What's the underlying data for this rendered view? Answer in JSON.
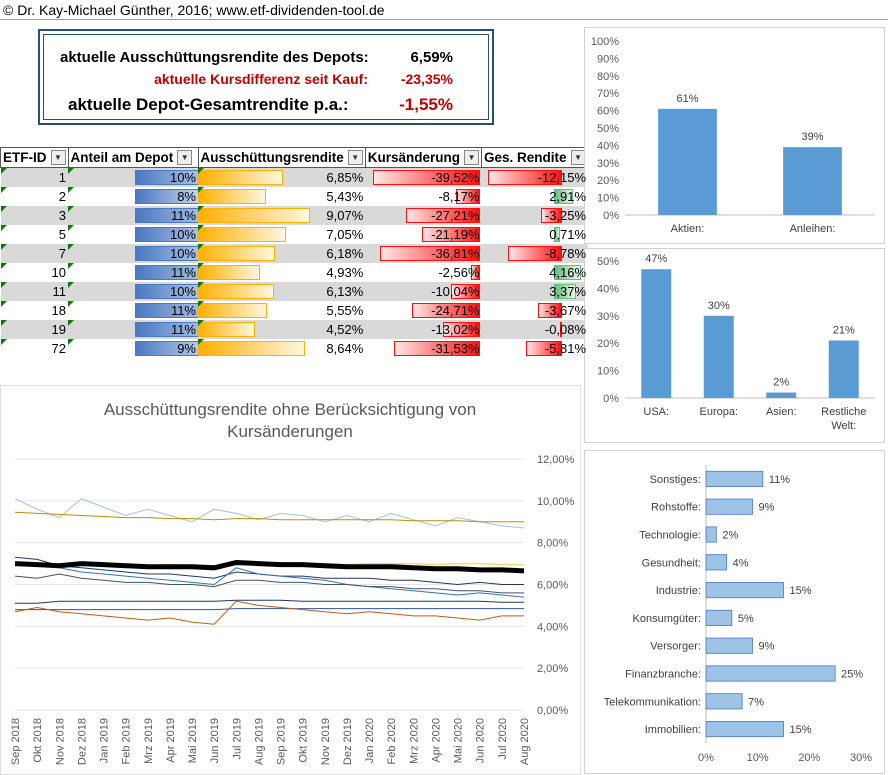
{
  "header": {
    "copyright": "© Dr. Kay-Michael Günther, 2016; www.etf-dividenden-tool.de"
  },
  "summary": {
    "yield_label": "aktuelle Ausschüttungsrendite des Depots:",
    "yield_value": "6,59%",
    "diff_label": "aktuelle Kursdifferenz seit Kauf:",
    "diff_value": "-23,35%",
    "total_label": "aktuelle Depot-Gesamtrendite p.a.:",
    "total_value": "-1,55%"
  },
  "table": {
    "headers": [
      "ETF-ID",
      "Anteil am Depot",
      "Ausschüttungsrendite",
      "Kursänderung",
      "Ges. Rendite"
    ],
    "rows": [
      {
        "id": "1",
        "share": "10%",
        "share_v": 0.1,
        "yield": "6,85%",
        "yield_v": 6.85,
        "chg": "-39,52%",
        "chg_v": -39.52,
        "tot": "-12,15%",
        "tot_v": -12.15
      },
      {
        "id": "2",
        "share": "8%",
        "share_v": 0.08,
        "yield": "5,43%",
        "yield_v": 5.43,
        "chg": "-8,17%",
        "chg_v": -8.17,
        "tot": "2,91%",
        "tot_v": 2.91
      },
      {
        "id": "3",
        "share": "11%",
        "share_v": 0.11,
        "yield": "9,07%",
        "yield_v": 9.07,
        "chg": "-27,21%",
        "chg_v": -27.21,
        "tot": "-3,25%",
        "tot_v": -3.25
      },
      {
        "id": "5",
        "share": "10%",
        "share_v": 0.1,
        "yield": "7,05%",
        "yield_v": 7.05,
        "chg": "-21,19%",
        "chg_v": -21.19,
        "tot": "0,71%",
        "tot_v": 0.71
      },
      {
        "id": "7",
        "share": "10%",
        "share_v": 0.1,
        "yield": "6,18%",
        "yield_v": 6.18,
        "chg": "-36,81%",
        "chg_v": -36.81,
        "tot": "-8,78%",
        "tot_v": -8.78
      },
      {
        "id": "10",
        "share": "11%",
        "share_v": 0.11,
        "yield": "4,93%",
        "yield_v": 4.93,
        "chg": "-2,56%",
        "chg_v": -2.56,
        "tot": "4,16%",
        "tot_v": 4.16
      },
      {
        "id": "11",
        "share": "10%",
        "share_v": 0.1,
        "yield": "6,13%",
        "yield_v": 6.13,
        "chg": "-10,04%",
        "chg_v": -10.04,
        "tot": "3,37%",
        "tot_v": 3.37
      },
      {
        "id": "18",
        "share": "11%",
        "share_v": 0.11,
        "yield": "5,55%",
        "yield_v": 5.55,
        "chg": "-24,71%",
        "chg_v": -24.71,
        "tot": "-3,67%",
        "tot_v": -3.67
      },
      {
        "id": "19",
        "share": "11%",
        "share_v": 0.11,
        "yield": "4,52%",
        "yield_v": 4.52,
        "chg": "-13,02%",
        "chg_v": -13.02,
        "tot": "-0,08%",
        "tot_v": -0.08
      },
      {
        "id": "72",
        "share": "9%",
        "share_v": 0.09,
        "yield": "8,64%",
        "yield_v": 8.64,
        "chg": "-31,53%",
        "chg_v": -31.53,
        "tot": "-5,81%",
        "tot_v": -5.81
      }
    ]
  },
  "chart_data": [
    {
      "type": "bar",
      "categories": [
        "Aktien:",
        "Anleihen:"
      ],
      "values": [
        61,
        39
      ],
      "labels": [
        "61%",
        "39%"
      ],
      "ylim": [
        0,
        100
      ],
      "yticks": [
        "0%",
        "10%",
        "20%",
        "30%",
        "40%",
        "50%",
        "60%",
        "70%",
        "80%",
        "90%",
        "100%"
      ],
      "color": "#5b9bd5"
    },
    {
      "type": "bar",
      "categories": [
        "USA:",
        "Europa:",
        "Asien:",
        "Restliche Welt:"
      ],
      "values": [
        47,
        30,
        2,
        21
      ],
      "labels": [
        "47%",
        "30%",
        "2%",
        "21%"
      ],
      "ylim": [
        0,
        50
      ],
      "yticks": [
        "0%",
        "10%",
        "20%",
        "30%",
        "40%",
        "50%"
      ],
      "color": "#5b9bd5"
    },
    {
      "type": "line",
      "title": "Ausschüttungsrendite ohne Berücksichtigung von Kursänderungen",
      "x": [
        "Sep 2018",
        "Okt 2018",
        "Nov 2018",
        "Dez 2018",
        "Jan 2019",
        "Feb 2019",
        "Mrz 2019",
        "Apr 2019",
        "Mai 2019",
        "Jun 2019",
        "Jul 2019",
        "Aug 2019",
        "Sep 2019",
        "Okt 2019",
        "Nov 2019",
        "Dez 2019",
        "Jan 2020",
        "Feb 2020",
        "Mrz 2020",
        "Apr 2020",
        "Mai 2020",
        "Jun 2020",
        "Jul 2020",
        "Aug 2020"
      ],
      "ylim": [
        0,
        12
      ],
      "yticks": [
        "0,00%",
        "2,00%",
        "4,00%",
        "6,00%",
        "8,00%",
        "10,00%",
        "12,00%"
      ],
      "series": [
        {
          "color": "#9dc3e6",
          "width": 1,
          "values": [
            10.1,
            9.6,
            9.2,
            10.1,
            9.7,
            9.3,
            9.6,
            9.3,
            9.0,
            9.6,
            9.4,
            9.1,
            9.4,
            9.3,
            9.0,
            9.3,
            9.0,
            9.4,
            9.1,
            8.8,
            9.2,
            9.0,
            8.8,
            8.7
          ]
        },
        {
          "color": "#bf9000",
          "width": 1,
          "values": [
            9.45,
            9.4,
            9.35,
            9.3,
            9.25,
            9.2,
            9.2,
            9.15,
            9.15,
            9.1,
            9.15,
            9.15,
            9.1,
            9.1,
            9.1,
            9.1,
            9.1,
            9.1,
            9.05,
            9.05,
            9.05,
            9.0,
            9.0,
            9.0
          ]
        },
        {
          "color": "#ffd966",
          "width": 1.5,
          "values": [
            6.9,
            6.95,
            6.9,
            7.0,
            6.95,
            6.95,
            6.9,
            6.95,
            6.9,
            6.9,
            6.95,
            6.95,
            7.0,
            7.0,
            7.0,
            6.95,
            7.0,
            7.0,
            7.0,
            6.95,
            7.0,
            7.0,
            6.95,
            6.95
          ]
        },
        {
          "color": "#1f3864",
          "width": 1,
          "values": [
            7.3,
            7.2,
            6.9,
            6.8,
            6.7,
            6.6,
            6.5,
            6.5,
            6.4,
            6.3,
            6.6,
            6.5,
            6.4,
            6.4,
            6.3,
            6.3,
            6.3,
            6.2,
            6.2,
            6.1,
            6.0,
            6.1,
            6.0,
            6.0
          ]
        },
        {
          "color": "#2e75b6",
          "width": 1,
          "values": [
            7.0,
            6.9,
            6.8,
            6.6,
            6.5,
            6.4,
            6.3,
            6.2,
            6.1,
            6.0,
            6.8,
            6.5,
            6.4,
            6.3,
            6.2,
            6.0,
            5.9,
            5.8,
            5.7,
            5.6,
            5.5,
            5.6,
            5.5,
            5.4
          ]
        },
        {
          "color": "#44546a",
          "width": 1,
          "values": [
            6.4,
            6.3,
            6.5,
            6.3,
            6.2,
            6.1,
            6.1,
            6.0,
            6.0,
            5.9,
            6.2,
            6.2,
            6.1,
            6.1,
            6.0,
            6.0,
            5.9,
            5.9,
            5.8,
            5.8,
            5.7,
            5.7,
            5.6,
            5.6
          ]
        },
        {
          "color": "#203864",
          "width": 1,
          "values": [
            5.1,
            5.1,
            5.2,
            5.2,
            5.2,
            5.2,
            5.2,
            5.2,
            5.2,
            5.2,
            5.25,
            5.25,
            5.25,
            5.2,
            5.2,
            5.2,
            5.2,
            5.2,
            5.2,
            5.2,
            5.2,
            5.2,
            5.15,
            5.15
          ]
        },
        {
          "color": "#2f5597",
          "width": 1,
          "values": [
            4.8,
            4.8,
            4.8,
            4.8,
            4.8,
            4.8,
            4.8,
            4.8,
            4.8,
            4.8,
            4.85,
            4.85,
            4.85,
            4.85,
            4.85,
            4.85,
            4.85,
            4.85,
            4.85,
            4.85,
            4.85,
            4.85,
            4.85,
            4.85
          ]
        },
        {
          "color": "#c55a11",
          "width": 1,
          "values": [
            4.7,
            4.9,
            4.7,
            4.6,
            4.5,
            4.4,
            4.3,
            4.4,
            4.2,
            4.1,
            5.2,
            5.0,
            4.9,
            4.8,
            4.7,
            4.6,
            4.7,
            4.6,
            4.5,
            4.5,
            4.4,
            4.3,
            4.5,
            4.5
          ]
        },
        {
          "color": "#000000",
          "width": 5,
          "values": [
            7.0,
            6.95,
            6.9,
            7.0,
            6.95,
            6.9,
            6.85,
            6.85,
            6.85,
            6.8,
            7.05,
            7.0,
            6.95,
            6.95,
            6.9,
            6.85,
            6.85,
            6.85,
            6.8,
            6.75,
            6.75,
            6.7,
            6.7,
            6.65
          ]
        }
      ]
    },
    {
      "type": "bar",
      "orientation": "horizontal",
      "categories": [
        "Sonstiges:",
        "Rohstoffe:",
        "Technologie:",
        "Gesundheit:",
        "Industrie:",
        "Konsumgüter:",
        "Versorger:",
        "Finanzbranche:",
        "Telekommunikation:",
        "Immobilien:"
      ],
      "values": [
        11,
        9,
        2,
        4,
        15,
        5,
        9,
        25,
        7,
        15
      ],
      "labels": [
        "11%",
        "9%",
        "2%",
        "4%",
        "15%",
        "5%",
        "9%",
        "25%",
        "7%",
        "15%"
      ],
      "xlim": [
        0,
        30
      ],
      "xticks": [
        "0%",
        "10%",
        "20%",
        "30%"
      ],
      "color": "#9dc3e6"
    }
  ]
}
